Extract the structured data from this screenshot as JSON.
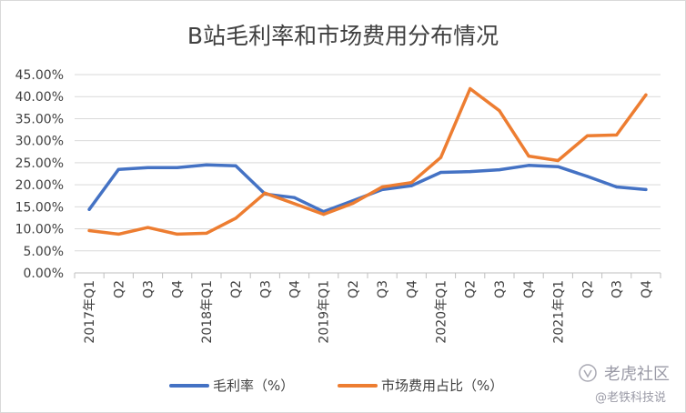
{
  "chart_data": {
    "type": "line",
    "title": "B站毛利率和市场费用分布情况",
    "xlabel": "",
    "ylabel": "",
    "ylim": [
      0,
      45
    ],
    "y_tick_labels": [
      "0.00%",
      "5.00%",
      "10.00%",
      "15.00%",
      "20.00%",
      "25.00%",
      "30.00%",
      "35.00%",
      "40.00%",
      "45.00%"
    ],
    "categories": [
      "2017年Q1",
      "Q2",
      "Q3",
      "Q4",
      "2018年Q1",
      "Q2",
      "Q3",
      "Q4",
      "2019年Q1",
      "Q2",
      "Q3",
      "Q4",
      "2020年Q1",
      "Q2",
      "Q3",
      "Q4",
      "2021年Q1",
      "Q2",
      "Q3",
      "Q4"
    ],
    "grid": true,
    "legend_position": "bottom",
    "series": [
      {
        "name": "毛利率（%）",
        "color": "#4472c4",
        "values": [
          14.4,
          23.5,
          23.9,
          23.9,
          24.5,
          24.3,
          17.9,
          17.1,
          13.9,
          16.4,
          18.9,
          19.8,
          22.8,
          23.0,
          23.4,
          24.4,
          24.1,
          21.9,
          19.5,
          18.9
        ]
      },
      {
        "name": "市场费用占比（%）",
        "color": "#ed7d31",
        "values": [
          9.6,
          8.8,
          10.3,
          8.8,
          9.0,
          12.4,
          18.1,
          15.7,
          13.3,
          15.8,
          19.5,
          20.5,
          26.2,
          41.8,
          36.8,
          26.5,
          25.5,
          31.1,
          31.3,
          40.4
        ]
      }
    ]
  },
  "watermark": {
    "main": "老虎社区",
    "sub": "@老铁科技说"
  }
}
